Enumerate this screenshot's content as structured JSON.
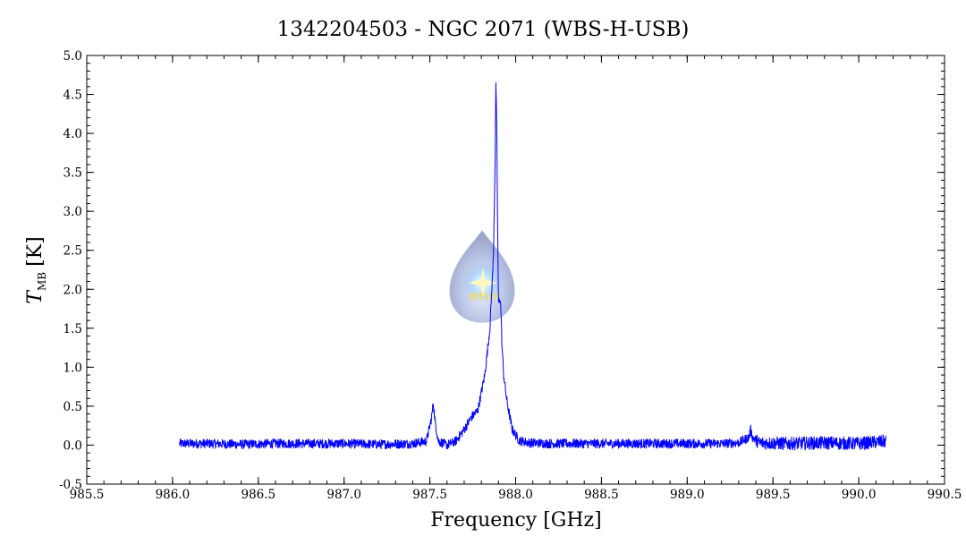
{
  "chart_data": {
    "type": "line",
    "title": "1342204503 - NGC 2071 (WBS-H-USB)",
    "xlabel": "Frequency [GHz]",
    "ylabel": {
      "symbol": "T",
      "subscript": "MB",
      "unit": "[K]"
    },
    "xlim": [
      985.5,
      990.5
    ],
    "ylim": [
      -0.5,
      5.0
    ],
    "x_ticks": [
      "985.5",
      "986.0",
      "986.5",
      "987.0",
      "987.5",
      "988.0",
      "988.5",
      "989.0",
      "989.5",
      "990.0",
      "990.5"
    ],
    "y_ticks": [
      "-0.5",
      "0.0",
      "0.5",
      "1.0",
      "1.5",
      "2.0",
      "2.5",
      "3.0",
      "3.5",
      "4.0",
      "4.5",
      "5.0"
    ],
    "grid": false,
    "line_color": "#0000ff",
    "series": [
      {
        "x": [
          986.04,
          986.2,
          986.4,
          986.6,
          986.8,
          987.0,
          987.2,
          987.4,
          987.48,
          987.51,
          987.52,
          987.53,
          987.55,
          987.6,
          987.65,
          987.7,
          987.74,
          987.78,
          987.82,
          987.85,
          987.87,
          987.88,
          987.885,
          987.89,
          987.895,
          987.9,
          987.91,
          987.915,
          987.92,
          987.93,
          987.95,
          987.98,
          988.02,
          988.08,
          988.2,
          988.4,
          988.6,
          988.8,
          989.0,
          989.2,
          989.3,
          989.36,
          989.37,
          989.38,
          989.42,
          989.6,
          989.8,
          990.0,
          990.16
        ],
        "y": [
          0.02,
          0.02,
          0.01,
          0.02,
          0.02,
          0.02,
          0.01,
          0.02,
          0.05,
          0.35,
          0.55,
          0.3,
          0.05,
          0.0,
          0.05,
          0.2,
          0.35,
          0.45,
          0.9,
          1.5,
          2.4,
          3.6,
          4.65,
          4.0,
          2.8,
          1.8,
          1.9,
          1.7,
          1.3,
          0.9,
          0.55,
          0.2,
          0.06,
          0.03,
          0.02,
          0.02,
          0.02,
          0.02,
          0.02,
          0.02,
          0.03,
          0.1,
          0.2,
          0.1,
          0.03,
          0.02,
          0.03,
          0.02,
          0.05
        ]
      }
    ]
  },
  "watermark": {
    "text": "WISH",
    "color": "#e8d54a"
  }
}
